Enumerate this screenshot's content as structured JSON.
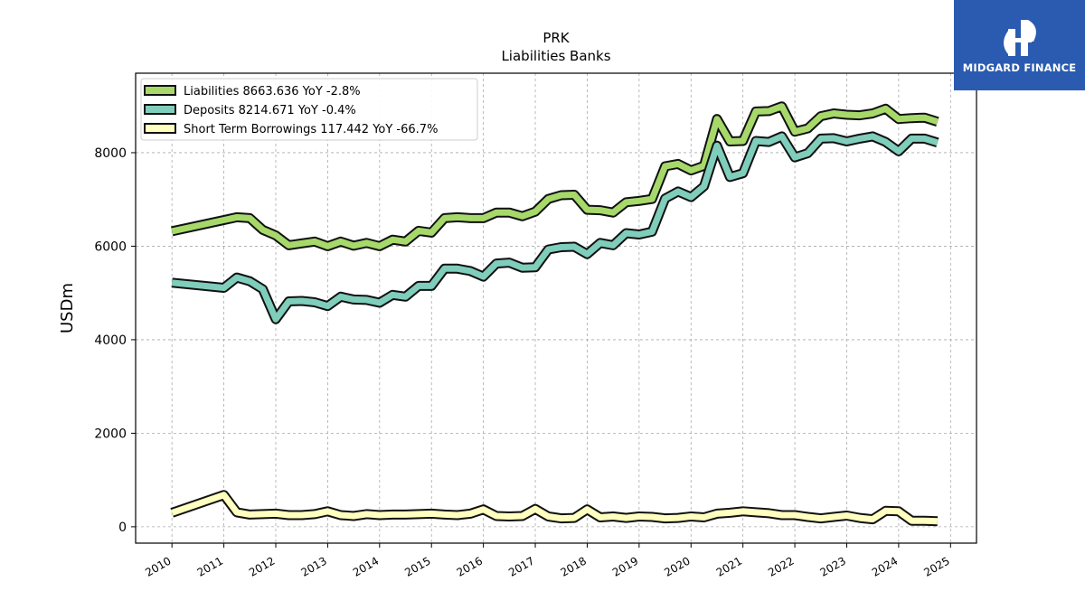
{
  "logo": {
    "text": "MIDGARD FINANCE",
    "bg": "#2a5bb0"
  },
  "chart_data": {
    "type": "line",
    "title": "PRK",
    "subtitle": "Liabilities Banks",
    "xlabel": "",
    "ylabel": "USDm",
    "ylim": [
      -350,
      9700
    ],
    "xlim": [
      2009.3,
      2025.5
    ],
    "yticks": [
      0,
      2000,
      4000,
      6000,
      8000
    ],
    "xticks": [
      "2010",
      "2011",
      "2012",
      "2013",
      "2014",
      "2015",
      "2016",
      "2017",
      "2018",
      "2019",
      "2020",
      "2021",
      "2022",
      "2023",
      "2024",
      "2025"
    ],
    "grid": true,
    "legend_position": "top-left",
    "x": [
      2010.0,
      2011.0,
      2011.25,
      2011.5,
      2011.75,
      2012.0,
      2012.25,
      2012.5,
      2012.75,
      2013.0,
      2013.25,
      2013.5,
      2013.75,
      2014.0,
      2014.25,
      2014.5,
      2014.75,
      2015.0,
      2015.25,
      2015.5,
      2015.75,
      2016.0,
      2016.25,
      2016.5,
      2016.75,
      2017.0,
      2017.25,
      2017.5,
      2017.75,
      2018.0,
      2018.25,
      2018.5,
      2018.75,
      2019.0,
      2019.25,
      2019.5,
      2019.75,
      2020.0,
      2020.25,
      2020.5,
      2020.75,
      2021.0,
      2021.25,
      2021.5,
      2021.75,
      2022.0,
      2022.25,
      2022.5,
      2022.75,
      2023.0,
      2023.25,
      2023.5,
      2023.75,
      2024.0,
      2024.25,
      2024.5,
      2024.75
    ],
    "series": [
      {
        "name": "Liabilities  8663.636 YoY -2.8%",
        "color": "#a6d96a",
        "values": [
          6320,
          6560,
          6620,
          6600,
          6350,
          6230,
          6020,
          6060,
          6100,
          6000,
          6100,
          6010,
          6070,
          6000,
          6140,
          6100,
          6330,
          6290,
          6600,
          6620,
          6600,
          6600,
          6720,
          6720,
          6640,
          6740,
          7010,
          7090,
          7100,
          6780,
          6770,
          6720,
          6940,
          6970,
          7010,
          7710,
          7760,
          7620,
          7720,
          8720,
          8240,
          8250,
          8880,
          8890,
          8990,
          8450,
          8520,
          8780,
          8840,
          8810,
          8800,
          8840,
          8940,
          8720,
          8740,
          8750,
          8663
        ]
      },
      {
        "name": "Deposits  8214.671 YoY -0.4%",
        "color": "#7fcdbb",
        "values": [
          5220,
          5110,
          5330,
          5250,
          5080,
          4440,
          4820,
          4830,
          4800,
          4720,
          4920,
          4860,
          4850,
          4790,
          4960,
          4920,
          5150,
          5150,
          5520,
          5520,
          5470,
          5350,
          5630,
          5650,
          5540,
          5550,
          5930,
          5980,
          5990,
          5830,
          6070,
          6020,
          6280,
          6250,
          6310,
          7020,
          7170,
          7050,
          7280,
          8150,
          7480,
          7560,
          8250,
          8230,
          8350,
          7900,
          7990,
          8300,
          8310,
          8240,
          8300,
          8350,
          8230,
          8030,
          8300,
          8300,
          8215
        ]
      },
      {
        "name": "Short Term Borrowings  117.442 YoY -66.7%",
        "color": "#ffffbf",
        "values": [
          300,
          680,
          310,
          260,
          270,
          280,
          250,
          250,
          270,
          330,
          250,
          230,
          270,
          250,
          260,
          260,
          270,
          280,
          260,
          250,
          280,
          370,
          230,
          220,
          230,
          380,
          220,
          180,
          190,
          370,
          200,
          220,
          190,
          220,
          210,
          180,
          190,
          220,
          200,
          280,
          300,
          330,
          310,
          290,
          250,
          250,
          210,
          180,
          210,
          240,
          190,
          160,
          340,
          330,
          130,
          130,
          117
        ]
      }
    ]
  }
}
